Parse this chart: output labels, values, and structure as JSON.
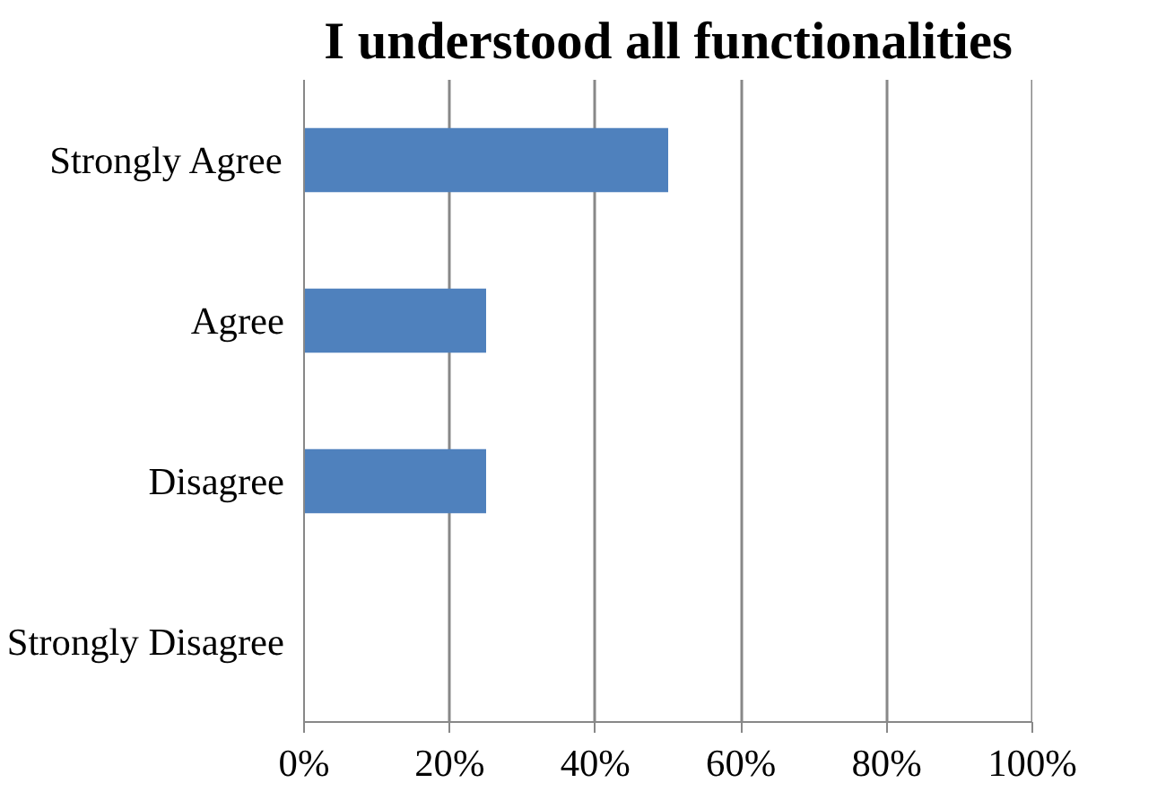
{
  "chart_data": {
    "type": "bar",
    "orientation": "horizontal",
    "title": "I understood all functionalities",
    "categories": [
      "Strongly Agree",
      "Agree",
      "Disagree",
      "Strongly Disagree"
    ],
    "values": [
      50,
      25,
      25,
      0
    ],
    "color": "#4f81bd",
    "xlim": [
      0,
      100
    ],
    "xticks": [
      {
        "value": 0,
        "label": "0%"
      },
      {
        "value": 20,
        "label": "20%"
      },
      {
        "value": 40,
        "label": "40%"
      },
      {
        "value": 60,
        "label": "60%"
      },
      {
        "value": 80,
        "label": "80%"
      },
      {
        "value": 100,
        "label": "100%"
      }
    ],
    "grid": "x"
  }
}
